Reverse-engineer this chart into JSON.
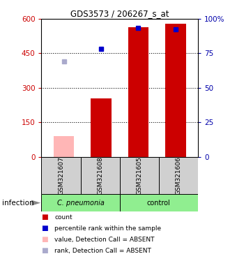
{
  "title": "GDS3573 / 206267_s_at",
  "samples": [
    "GSM321607",
    "GSM321608",
    "GSM321605",
    "GSM321606"
  ],
  "y_left_ticks": [
    0,
    150,
    300,
    450,
    600
  ],
  "y_right_ticks": [
    0,
    25,
    50,
    75,
    100
  ],
  "y_right_labels": [
    "0",
    "25",
    "50",
    "75",
    "100%"
  ],
  "ylim": [
    0,
    600
  ],
  "bar_width": 0.55,
  "counts": [
    null,
    255,
    562,
    578
  ],
  "counts_absent": [
    90,
    null,
    null,
    null
  ],
  "percentile_ranks": [
    null,
    470,
    null,
    null
  ],
  "percentile_ranks_present_gsm05": 560,
  "percentile_ranks_present_gsm06": 555,
  "percentile_absent": [
    415,
    null,
    null,
    null
  ],
  "colors": {
    "bar_present": "#CC0000",
    "bar_absent": "#FFB6B6",
    "dot_present": "#0000CC",
    "dot_absent": "#AAAACC",
    "grid": "black",
    "sample_bg": "#D0D0D0",
    "group_cpneumonia": "#90EE90",
    "group_control": "#90EE90",
    "title": "black",
    "left_tick": "#CC0000",
    "right_tick": "#0000AA"
  },
  "legend_colors": [
    "#CC0000",
    "#0000CC",
    "#FFB6B6",
    "#AAAACC"
  ],
  "legend_labels": [
    "count",
    "percentile rank within the sample",
    "value, Detection Call = ABSENT",
    "rank, Detection Call = ABSENT"
  ],
  "infection_label": "infection",
  "cpneumonia_label": "C. pneumonia",
  "control_label": "control"
}
